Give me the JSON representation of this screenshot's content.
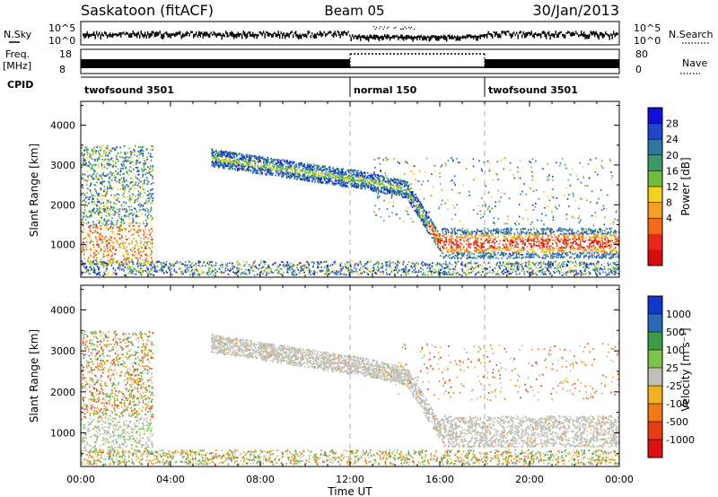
{
  "header": {
    "station": "Saskatoon (fitACF)",
    "beam": "Beam 05",
    "date": "30/Jan/2013"
  },
  "strips": {
    "nsky_label": "N.Sky",
    "nsky_ticks": [
      "10^5",
      "10^0"
    ],
    "nsearch_label": "N.Search",
    "freq_label_1": "Freq.",
    "freq_label_2": "[MHz]",
    "freq_ticks": [
      "18",
      "8"
    ],
    "nave_label": "Nave",
    "nave_ticks": [
      "80",
      "0"
    ],
    "cpid_label": "CPID",
    "cpid_segments": [
      {
        "name": "twofsound 3501",
        "start_hour": 0,
        "end_hour": 12
      },
      {
        "name": "normal 150",
        "start_hour": 12,
        "end_hour": 18
      },
      {
        "name": "twofsound 3501",
        "start_hour": 18,
        "end_hour": 24
      }
    ]
  },
  "chart_data": [
    {
      "type": "heatmap",
      "panel": "power",
      "ylabel": "Slant Range [km]",
      "xlabel": "Time UT",
      "x_ticks": [
        "00:00",
        "04:00",
        "08:00",
        "12:00",
        "16:00",
        "20:00",
        "00:00"
      ],
      "x_range_hours": [
        0,
        24
      ],
      "y_ticks": [
        1000,
        2000,
        3000,
        4000
      ],
      "ylim": [
        180,
        4600
      ],
      "colorbar_label": "Power [dB]",
      "colorbar_ticks": [
        "4",
        "8",
        "12",
        "16",
        "20",
        "24",
        "28"
      ],
      "colorbar_colors": [
        "#1010d8",
        "#1e48c8",
        "#2a78a0",
        "#3a9a6a",
        "#6cbf3e",
        "#f2d21c",
        "#f5a020",
        "#f46a18",
        "#e82818",
        "#d80c0c"
      ]
    },
    {
      "type": "heatmap",
      "panel": "velocity",
      "ylabel": "Slant Range [km]",
      "xlabel": "Time UT",
      "x_ticks": [
        "00:00",
        "04:00",
        "08:00",
        "12:00",
        "16:00",
        "20:00",
        "00:00"
      ],
      "x_range_hours": [
        0,
        24
      ],
      "y_ticks": [
        1000,
        2000,
        3000,
        4000
      ],
      "ylim": [
        180,
        4600
      ],
      "colorbar_label": "Velocity [m s⁻¹]",
      "colorbar_ticks": [
        "1000",
        "500",
        "100",
        "25",
        "-25",
        "-100",
        "-500",
        "-1000"
      ],
      "colorbar_colors": [
        "#1038c8",
        "#2a68b8",
        "#3a9a46",
        "#7cc44a",
        "#c0c0b8",
        "#f0b020",
        "#f07a18",
        "#e83c14",
        "#e01010"
      ]
    }
  ],
  "colors": {
    "gray": "#c0c0b8",
    "blue": "#1e48c8",
    "red": "#e82818"
  }
}
